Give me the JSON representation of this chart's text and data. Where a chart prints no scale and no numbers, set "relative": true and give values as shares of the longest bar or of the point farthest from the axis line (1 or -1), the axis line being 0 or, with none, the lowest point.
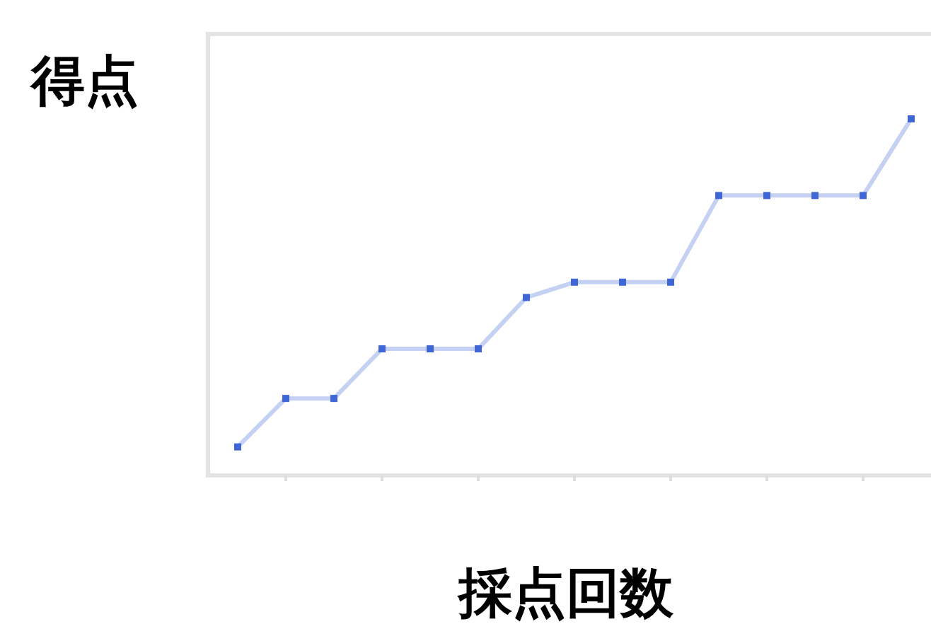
{
  "chart_data": {
    "type": "line",
    "xlabel": "採点回数",
    "ylabel": "得点",
    "relative": true,
    "marker": "square",
    "line_style": "solid",
    "grid": false,
    "categories": [
      null,
      null,
      null,
      null,
      null,
      null,
      null,
      null,
      null,
      null,
      null,
      null,
      null,
      null,
      null
    ],
    "series": [
      {
        "color": "#3f66d6",
        "values": [
          0.08,
          0.216,
          0.216,
          0.355,
          0.355,
          0.355,
          0.499,
          0.542,
          0.542,
          0.542,
          0.785,
          0.785,
          0.785,
          0.785,
          1
        ]
      }
    ]
  }
}
